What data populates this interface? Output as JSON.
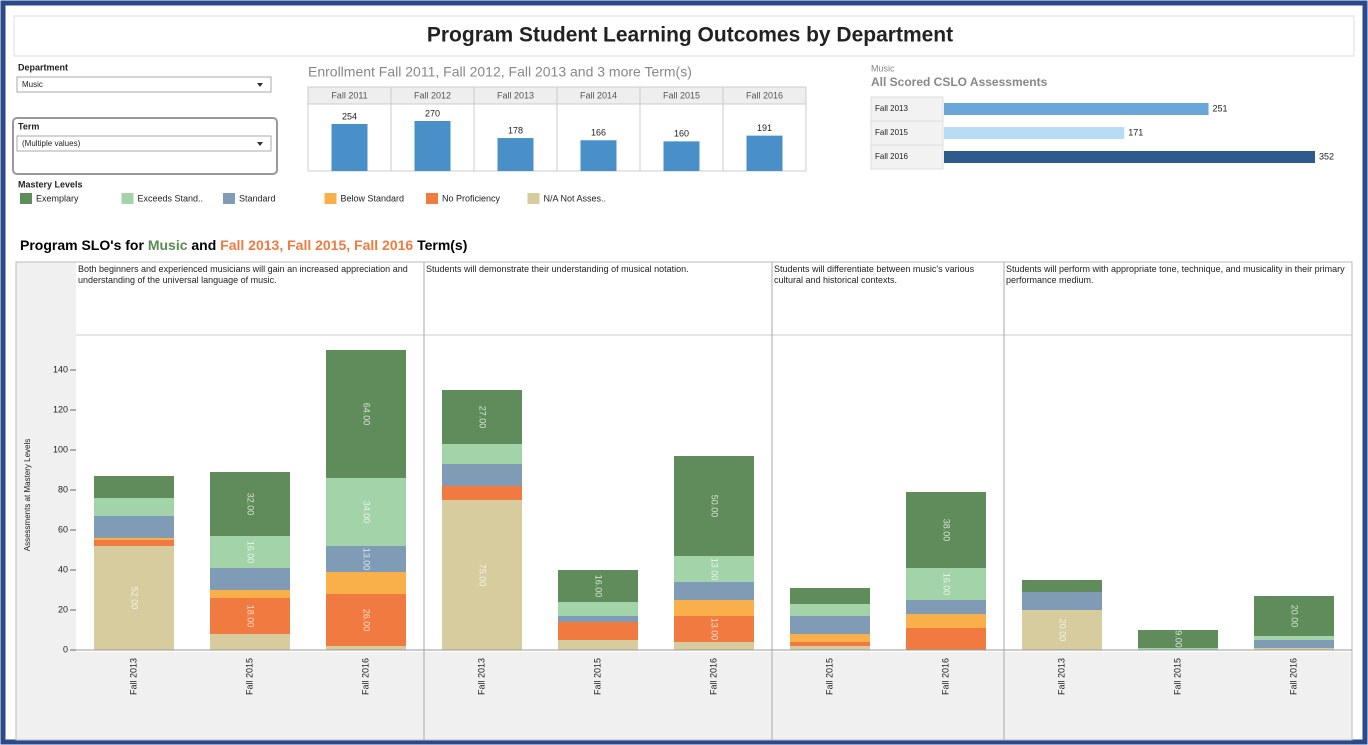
{
  "header": {
    "title": "Program Student Learning Outcomes by Department"
  },
  "filters": [
    {
      "label": "Department",
      "value": "Music"
    },
    {
      "label": "Term",
      "value": "(Multiple values)"
    }
  ],
  "chart_data": [
    {
      "type": "bar",
      "title": "Enrollment Fall 2011, Fall 2012, Fall 2013 and 3 more Term(s)",
      "categories": [
        "Fall 2011",
        "Fall 2012",
        "Fall 2013",
        "Fall 2014",
        "Fall 2015",
        "Fall 2016"
      ],
      "values": [
        254,
        270,
        178,
        166,
        160,
        191
      ],
      "color": "#4a90c8"
    },
    {
      "type": "hbar",
      "label": "Music",
      "title": "All Scored CSLO Assessments",
      "categories": [
        "Fall 2013",
        "Fall 2015",
        "Fall 2016"
      ],
      "values": [
        251,
        171,
        352
      ],
      "colors": [
        "#6aa6d8",
        "#b8dcf4",
        "#2c5b8c"
      ]
    },
    {
      "type": "stacked-bar",
      "title_parts": [
        "Program SLO's for ",
        "Music",
        " and ",
        "Fall 2013, Fall 2015, Fall 2016",
        " Term(s)"
      ],
      "title_colors": [
        "#000000",
        "#5a8a54",
        "#000000",
        "#f07a3f",
        "#000000"
      ],
      "y_label": "Assessments at Mastery Levels",
      "ylim": [
        0,
        158
      ],
      "yticks": [
        0,
        20,
        40,
        60,
        80,
        100,
        120,
        140
      ],
      "legend_title": "Mastery Levels",
      "levels": [
        {
          "name": "Exemplary",
          "color": "#5f8c5a"
        },
        {
          "name": "Exceeds Stand..",
          "color": "#a3d3a9"
        },
        {
          "name": "Standard",
          "color": "#7f9bb5"
        },
        {
          "name": "Below Standard",
          "color": "#f9b04a"
        },
        {
          "name": "No Proficiency",
          "color": "#f07a3f"
        },
        {
          "name": "N/A Not Asses..",
          "color": "#d6cc9e"
        }
      ],
      "panels": [
        {
          "label": "Both beginners and experienced musicians will gain an increased appreciation and understanding of the universal language of music.",
          "categories": [
            "Fall 2013",
            "Fall 2015",
            "Fall 2016"
          ],
          "series": [
            {
              "values": [
                11,
                32,
                64
              ],
              "value_labels": [
                null,
                "32.00",
                "64.00"
              ]
            },
            {
              "values": [
                9,
                16,
                34
              ],
              "value_labels": [
                null,
                "16.00",
                "34.00"
              ]
            },
            {
              "values": [
                11,
                11,
                13
              ],
              "value_labels": [
                null,
                null,
                "13.00"
              ]
            },
            {
              "values": [
                1,
                4,
                11
              ],
              "value_labels": [
                null,
                null,
                null
              ]
            },
            {
              "values": [
                3,
                18,
                26
              ],
              "value_labels": [
                null,
                "18.00",
                "26.00"
              ]
            },
            {
              "values": [
                52,
                8,
                2
              ],
              "value_labels": [
                "52.00",
                null,
                null
              ]
            }
          ]
        },
        {
          "label": "Students will demonstrate their understanding of musical notation.",
          "categories": [
            "Fall 2013",
            "Fall 2015",
            "Fall 2016"
          ],
          "series": [
            {
              "values": [
                27,
                16,
                50
              ],
              "value_labels": [
                "27.00",
                "16.00",
                "50.00"
              ]
            },
            {
              "values": [
                10,
                7,
                13
              ],
              "value_labels": [
                null,
                null,
                "13.00"
              ]
            },
            {
              "values": [
                11,
                3,
                9
              ],
              "value_labels": [
                null,
                null,
                null
              ]
            },
            {
              "values": [
                0,
                0,
                8
              ],
              "value_labels": [
                null,
                null,
                null
              ]
            },
            {
              "values": [
                7,
                9,
                13
              ],
              "value_labels": [
                null,
                null,
                "13.00"
              ]
            },
            {
              "values": [
                75,
                5,
                4
              ],
              "value_labels": [
                "75.00",
                null,
                null
              ]
            }
          ]
        },
        {
          "label": "Students will differentiate between music's various cultural and historical contexts.",
          "categories": [
            "Fall 2015",
            "Fall 2016"
          ],
          "series": [
            {
              "values": [
                8,
                38
              ],
              "value_labels": [
                null,
                "38.00"
              ]
            },
            {
              "values": [
                6,
                16
              ],
              "value_labels": [
                null,
                "16.00"
              ]
            },
            {
              "values": [
                9,
                7
              ],
              "value_labels": [
                null,
                null
              ]
            },
            {
              "values": [
                4,
                7
              ],
              "value_labels": [
                null,
                null
              ]
            },
            {
              "values": [
                2,
                11
              ],
              "value_labels": [
                null,
                null
              ]
            },
            {
              "values": [
                2,
                0
              ],
              "value_labels": [
                null,
                null
              ]
            }
          ]
        },
        {
          "label": "Students will perform with appropriate tone, technique, and musicality in their primary performance medium.",
          "categories": [
            "Fall 2013",
            "Fall 2015",
            "Fall 2016"
          ],
          "series": [
            {
              "values": [
                6,
                9,
                20
              ],
              "value_labels": [
                null,
                "9.00",
                "20.00"
              ]
            },
            {
              "values": [
                0,
                1,
                2
              ],
              "value_labels": [
                null,
                null,
                null
              ]
            },
            {
              "values": [
                9,
                0,
                4
              ],
              "value_labels": [
                null,
                null,
                null
              ]
            },
            {
              "values": [
                0,
                0,
                0
              ],
              "value_labels": [
                null,
                null,
                null
              ]
            },
            {
              "values": [
                0,
                0,
                0
              ],
              "value_labels": [
                null,
                null,
                null
              ]
            },
            {
              "values": [
                20,
                0,
                1
              ],
              "value_labels": [
                "20.00",
                null,
                null
              ]
            }
          ]
        }
      ]
    }
  ]
}
